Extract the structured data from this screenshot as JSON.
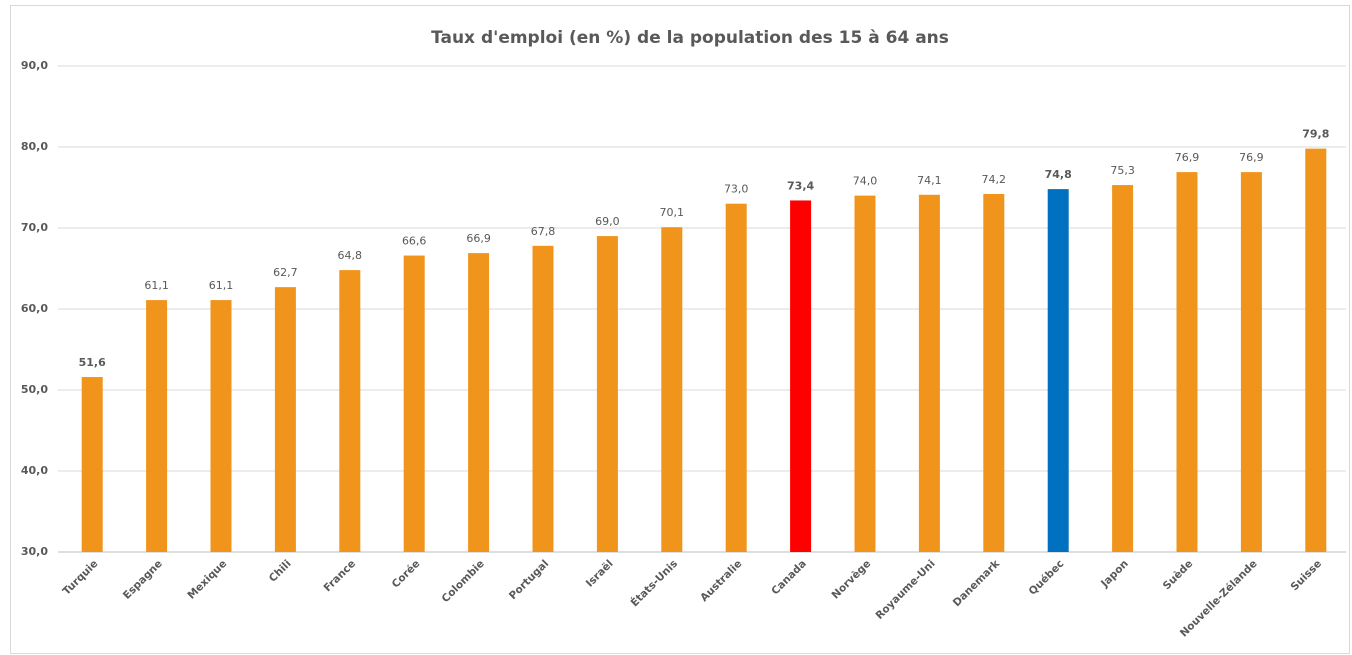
{
  "chart_data": {
    "type": "bar",
    "title": "Taux d'emploi (en %) de la population des 15 à 64 ans",
    "categories": [
      "Turquie",
      "Espagne",
      "Mexique",
      "Chili",
      "France",
      "Corée",
      "Colombie",
      "Portugal",
      "Israël",
      "États-Unis",
      "Australie",
      "Canada",
      "Norvège",
      "Royaume-Uni",
      "Danemark",
      "Québec",
      "Japon",
      "Suède",
      "Nouvelle-Zélande",
      "Suisse"
    ],
    "values": [
      51.6,
      61.1,
      61.1,
      62.7,
      64.8,
      66.6,
      66.9,
      67.8,
      69.0,
      70.1,
      73.0,
      73.4,
      74.0,
      74.1,
      74.2,
      74.8,
      75.3,
      76.9,
      76.9,
      79.8
    ],
    "value_labels": [
      "51,6",
      "61,1",
      "61,1",
      "62,7",
      "64,8",
      "66,6",
      "66,9",
      "67,8",
      "69,0",
      "70,1",
      "73,0",
      "73,4",
      "74,0",
      "74,1",
      "74,2",
      "74,8",
      "75,3",
      "76,9",
      "76,9",
      "79,8"
    ],
    "colors": [
      "#f0941c",
      "#f0941c",
      "#f0941c",
      "#f0941c",
      "#f0941c",
      "#f0941c",
      "#f0941c",
      "#f0941c",
      "#f0941c",
      "#f0941c",
      "#f0941c",
      "#ff0000",
      "#f0941c",
      "#f0941c",
      "#f0941c",
      "#0070c0",
      "#f0941c",
      "#f0941c",
      "#f0941c",
      "#f0941c"
    ],
    "ylim": [
      30,
      90
    ],
    "yticks": [
      {
        "value": 30,
        "label": "30,0"
      },
      {
        "value": 40,
        "label": "40,0"
      },
      {
        "value": 50,
        "label": "50,0"
      },
      {
        "value": 60,
        "label": "60,0"
      },
      {
        "value": 70,
        "label": "70,0"
      },
      {
        "value": 80,
        "label": "80,0"
      },
      {
        "value": 90,
        "label": "90,0"
      }
    ],
    "grid": true
  }
}
